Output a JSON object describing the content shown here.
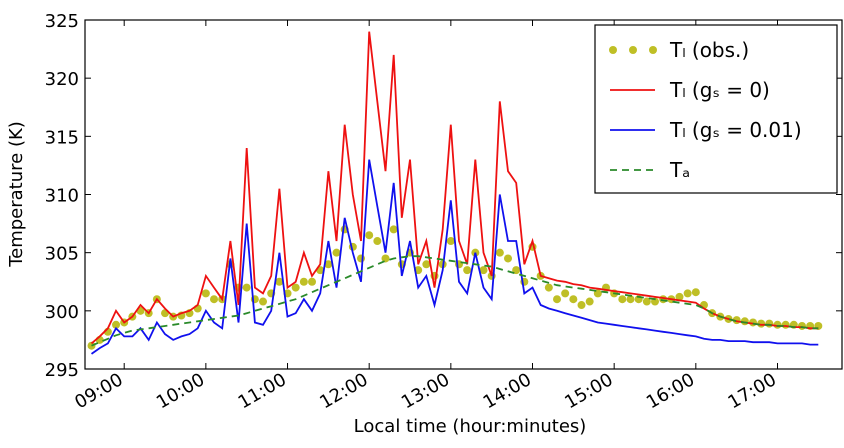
{
  "chart_data": {
    "type": "line",
    "y_label": "Temperature (K)",
    "x_label": "Local time (hour:minutes)",
    "x": [
      8.6,
      8.7,
      8.8,
      8.9,
      9.0,
      9.1,
      9.2,
      9.3,
      9.4,
      9.5,
      9.6,
      9.7,
      9.8,
      9.9,
      10.0,
      10.1,
      10.2,
      10.3,
      10.4,
      10.5,
      10.6,
      10.7,
      10.8,
      10.9,
      11.0,
      11.1,
      11.2,
      11.3,
      11.4,
      11.5,
      11.6,
      11.7,
      11.8,
      11.9,
      12.0,
      12.1,
      12.2,
      12.3,
      12.4,
      12.5,
      12.6,
      12.7,
      12.8,
      12.9,
      13.0,
      13.1,
      13.2,
      13.3,
      13.4,
      13.5,
      13.6,
      13.7,
      13.8,
      13.9,
      14.0,
      14.1,
      14.2,
      14.3,
      14.4,
      14.5,
      14.6,
      14.7,
      14.8,
      14.9,
      15.0,
      15.1,
      15.2,
      15.3,
      15.4,
      15.5,
      15.6,
      15.7,
      15.8,
      15.9,
      16.0,
      16.1,
      16.2,
      16.3,
      16.4,
      16.5,
      16.6,
      16.7,
      16.8,
      16.9,
      17.0,
      17.1,
      17.2,
      17.3,
      17.4,
      17.5
    ],
    "series": [
      {
        "name": "Tₗ (obs.)",
        "color": "#bfbf26",
        "style": "dots",
        "values": [
          297.0,
          297.5,
          298.2,
          298.8,
          299.0,
          299.5,
          300.0,
          299.8,
          301.0,
          299.8,
          299.5,
          299.6,
          299.8,
          300.2,
          301.5,
          301.0,
          301.0,
          304.0,
          302.0,
          302.0,
          301.0,
          300.8,
          301.5,
          302.5,
          301.5,
          302.0,
          302.5,
          302.5,
          303.5,
          304.0,
          305.0,
          307.0,
          305.5,
          304.5,
          306.5,
          306.0,
          304.5,
          307.0,
          304.0,
          305.0,
          303.5,
          304.0,
          303.0,
          304.0,
          306.0,
          304.0,
          303.5,
          305.0,
          303.5,
          303.0,
          305.0,
          304.5,
          303.5,
          302.5,
          305.5,
          303.0,
          302.0,
          301.0,
          301.5,
          301.0,
          300.5,
          300.8,
          301.5,
          302.0,
          301.5,
          301.0,
          301.0,
          301.0,
          300.8,
          300.8,
          301.0,
          301.0,
          301.2,
          301.5,
          301.6,
          300.5,
          299.8,
          299.5,
          299.3,
          299.2,
          299.1,
          299.0,
          298.9,
          298.9,
          298.8,
          298.8,
          298.8,
          298.7,
          298.7,
          298.7
        ]
      },
      {
        "name": "Tₗ (gₛ = 0)",
        "color": "#ee1111",
        "style": "solid",
        "values": [
          297.2,
          297.8,
          298.5,
          300.0,
          299.0,
          299.5,
          300.5,
          299.8,
          301.0,
          300.2,
          299.5,
          299.8,
          300.0,
          300.5,
          303.0,
          302.0,
          301.0,
          306.0,
          300.5,
          314.0,
          302.0,
          301.5,
          303.0,
          310.5,
          302.0,
          302.5,
          305.0,
          303.0,
          304.0,
          312.0,
          306.0,
          316.0,
          310.0,
          306.0,
          324.0,
          318.0,
          312.0,
          322.0,
          308.0,
          313.0,
          304.0,
          306.0,
          302.0,
          307.0,
          316.0,
          306.0,
          304.0,
          313.0,
          305.0,
          303.0,
          318.0,
          312.0,
          311.0,
          304.0,
          306.0,
          303.0,
          302.8,
          302.6,
          302.5,
          302.3,
          302.2,
          302.0,
          301.9,
          301.8,
          301.7,
          301.6,
          301.5,
          301.4,
          301.3,
          301.2,
          301.1,
          301.0,
          300.9,
          300.8,
          300.7,
          300.2,
          299.8,
          299.5,
          299.3,
          299.1,
          299.0,
          298.9,
          298.8,
          298.8,
          298.7,
          298.7,
          298.6,
          298.6,
          298.5,
          298.5
        ]
      },
      {
        "name": "Tₗ (gₛ = 0.01)",
        "color": "#1010ee",
        "style": "solid",
        "values": [
          296.3,
          296.8,
          297.2,
          298.5,
          297.8,
          297.8,
          298.5,
          297.5,
          299.0,
          298.0,
          297.5,
          297.8,
          298.0,
          298.5,
          300.0,
          299.0,
          298.5,
          304.5,
          299.0,
          307.5,
          299.0,
          298.8,
          300.0,
          305.0,
          299.5,
          299.8,
          301.0,
          300.0,
          301.5,
          306.0,
          302.0,
          308.0,
          305.0,
          302.5,
          313.0,
          309.0,
          305.0,
          311.0,
          303.0,
          306.0,
          302.0,
          303.0,
          300.5,
          303.5,
          309.5,
          302.5,
          301.5,
          305.0,
          302.0,
          301.0,
          310.0,
          306.0,
          306.0,
          301.5,
          302.0,
          300.5,
          300.2,
          300.0,
          299.8,
          299.6,
          299.4,
          299.2,
          299.0,
          298.9,
          298.8,
          298.7,
          298.6,
          298.5,
          298.4,
          298.3,
          298.2,
          298.1,
          298.0,
          297.9,
          297.8,
          297.6,
          297.5,
          297.5,
          297.4,
          297.4,
          297.4,
          297.3,
          297.3,
          297.3,
          297.2,
          297.2,
          297.2,
          297.2,
          297.1,
          297.1
        ]
      },
      {
        "name": "Tₐ",
        "color": "#2a8a2a",
        "style": "dashed",
        "values": [
          297.0,
          297.3,
          297.6,
          297.9,
          298.1,
          298.3,
          298.4,
          298.5,
          298.6,
          298.7,
          298.8,
          298.9,
          299.0,
          299.1,
          299.2,
          299.3,
          299.4,
          299.5,
          299.6,
          299.8,
          300.0,
          300.2,
          300.4,
          300.6,
          300.8,
          301.0,
          301.3,
          301.6,
          301.9,
          302.2,
          302.5,
          302.8,
          303.1,
          303.4,
          303.7,
          304.0,
          304.3,
          304.5,
          304.6,
          304.7,
          304.7,
          304.6,
          304.5,
          304.4,
          304.3,
          304.2,
          304.1,
          304.0,
          303.9,
          303.8,
          303.6,
          303.4,
          303.2,
          303.0,
          302.8,
          302.6,
          302.4,
          302.2,
          302.1,
          302.0,
          301.9,
          301.8,
          301.7,
          301.6,
          301.5,
          301.4,
          301.3,
          301.2,
          301.1,
          301.0,
          300.9,
          300.8,
          300.7,
          300.6,
          300.5,
          300.2,
          299.8,
          299.5,
          299.3,
          299.1,
          299.0,
          298.9,
          298.8,
          298.8,
          298.7,
          298.7,
          298.6,
          298.6,
          298.5,
          298.5
        ]
      }
    ],
    "xlim": [
      8.52,
      17.79
    ],
    "ylim": [
      295,
      325
    ],
    "xticks": [
      {
        "value": 9,
        "label": "09:00"
      },
      {
        "value": 10,
        "label": "10:00"
      },
      {
        "value": 11,
        "label": "11:00"
      },
      {
        "value": 12,
        "label": "12:00"
      },
      {
        "value": 13,
        "label": "13:00"
      },
      {
        "value": 14,
        "label": "14:00"
      },
      {
        "value": 15,
        "label": "15:00"
      },
      {
        "value": 16,
        "label": "16:00"
      },
      {
        "value": 17,
        "label": "17:00"
      }
    ],
    "yticks": [
      295,
      300,
      305,
      310,
      315,
      320,
      325
    ],
    "legend": "upper right"
  }
}
